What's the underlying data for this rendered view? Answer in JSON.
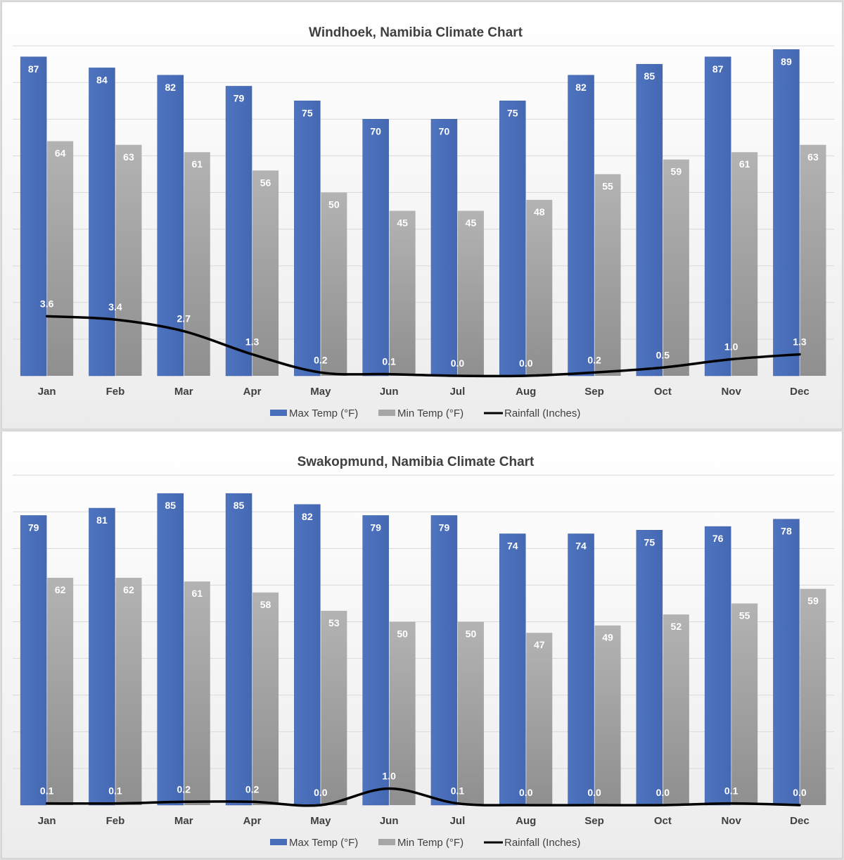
{
  "chart_data": [
    {
      "type": "bar",
      "title": "Windhoek, Namibia Climate Chart",
      "categories": [
        "Jan",
        "Feb",
        "Mar",
        "Apr",
        "May",
        "Jun",
        "Jul",
        "Aug",
        "Sep",
        "Oct",
        "Nov",
        "Dec"
      ],
      "series": [
        {
          "name": "Max Temp (°F)",
          "type": "bar",
          "values": [
            87,
            84,
            82,
            79,
            75,
            70,
            70,
            75,
            82,
            85,
            87,
            89
          ]
        },
        {
          "name": "Min Temp (°F)",
          "type": "bar",
          "values": [
            64,
            63,
            61,
            56,
            50,
            45,
            45,
            48,
            55,
            59,
            61,
            63
          ]
        },
        {
          "name": "Rainfall (Inches)",
          "type": "line",
          "values": [
            "3.6",
            "3.4",
            "2.7",
            "1.3",
            "0.2",
            "0.1",
            "0.0",
            "0.0",
            "0.2",
            "0.5",
            "1.0",
            "1.3"
          ]
        }
      ],
      "ylim": [
        0,
        90
      ],
      "grid": true,
      "legend_position": "bottom"
    },
    {
      "type": "bar",
      "title": "Swakopmund, Namibia Climate Chart",
      "categories": [
        "Jan",
        "Feb",
        "Mar",
        "Apr",
        "May",
        "Jun",
        "Jul",
        "Aug",
        "Sep",
        "Oct",
        "Nov",
        "Dec"
      ],
      "series": [
        {
          "name": "Max Temp (°F)",
          "type": "bar",
          "values": [
            79,
            81,
            85,
            85,
            82,
            79,
            79,
            74,
            74,
            75,
            76,
            78
          ]
        },
        {
          "name": "Min Temp (°F)",
          "type": "bar",
          "values": [
            62,
            62,
            61,
            58,
            53,
            50,
            50,
            47,
            49,
            52,
            55,
            59
          ]
        },
        {
          "name": "Rainfall (Inches)",
          "type": "line",
          "values": [
            "0.1",
            "0.1",
            "0.2",
            "0.2",
            "0.0",
            "1.0",
            "0.1",
            "0.0",
            "0.0",
            "0.0",
            "0.1",
            "0.0"
          ]
        }
      ],
      "ylim": [
        0,
        90
      ],
      "grid": true,
      "legend_position": "bottom"
    }
  ],
  "colors": {
    "max_temp": "#4a6fba",
    "min_temp": "#a6a6a6",
    "rainfall": "#000000"
  }
}
